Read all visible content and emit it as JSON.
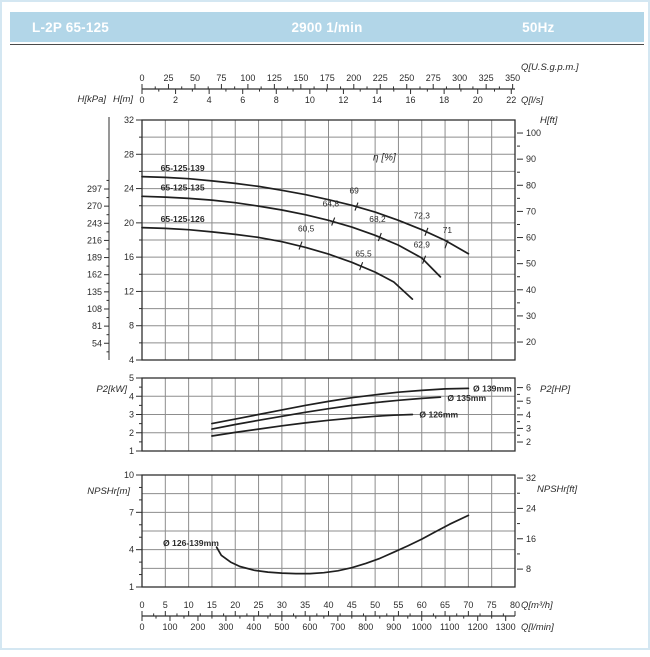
{
  "header": {
    "model": "L-2P 65-125",
    "speed": "2900 1/min",
    "frequency": "50Hz"
  },
  "style": {
    "bar_color": "#b2d6e8",
    "bar_text_color": "#ffffff",
    "curve_color": "#1f1f1f",
    "grid_color": "#8d8d8d",
    "frame_color": "#2f2f2f",
    "text_color": "#2b2b2b",
    "page_border_color": "#d4e7f2"
  },
  "chart_data": {
    "type": "line",
    "flow_scales": {
      "xlim_m3h": [
        0,
        80
      ],
      "top": [
        {
          "label": "Q[U.S.g.p.m.]",
          "m3h_per_unit": 0.22712,
          "ticks": [
            0,
            25,
            50,
            75,
            100,
            125,
            150,
            175,
            200,
            225,
            250,
            275,
            300,
            325,
            350
          ]
        },
        {
          "label": "Q[l/s]",
          "m3h_per_unit": 3.6,
          "ticks": [
            0,
            2,
            4,
            6,
            8,
            10,
            12,
            14,
            16,
            18,
            20,
            22
          ]
        }
      ],
      "bottom": [
        {
          "label": "Q[m³/h]",
          "m3h_per_unit": 1,
          "ticks": [
            0,
            5,
            10,
            15,
            20,
            25,
            30,
            35,
            40,
            45,
            50,
            55,
            60,
            65,
            70,
            75,
            80
          ]
        },
        {
          "label": "Q[l/min]",
          "m3h_per_unit": 0.06,
          "ticks": [
            0,
            100,
            200,
            300,
            400,
            500,
            600,
            700,
            800,
            900,
            1000,
            1100,
            1200,
            1300
          ]
        }
      ]
    },
    "head_chart": {
      "ylim": [
        4,
        32
      ],
      "grid_y_step": 2,
      "grid_x_step_m3h": 5,
      "y_left_primary": {
        "label": "H[m]",
        "ticks": [
          4,
          8,
          12,
          16,
          20,
          24,
          28,
          32
        ]
      },
      "y_left_secondary": {
        "label": "H[kPa]",
        "ticks": [
          54,
          81,
          108,
          135,
          162,
          189,
          216,
          243,
          270,
          297
        ]
      },
      "y_right": {
        "label": "H[ft]",
        "ticks": [
          20,
          30,
          40,
          50,
          60,
          70,
          80,
          90,
          100
        ],
        "m_per_ft": 0.3048
      },
      "efficiency_title": "η [%]",
      "efficiency_title_pos": [
        52,
        27.3
      ],
      "series": [
        {
          "name": "65-125-139",
          "label_pos": [
            4,
            26.4
          ],
          "points": [
            [
              0,
              25.4
            ],
            [
              5,
              25.3
            ],
            [
              10,
              25.15
            ],
            [
              15,
              24.9
            ],
            [
              20,
              24.6
            ],
            [
              25,
              24.25
            ],
            [
              30,
              23.8
            ],
            [
              35,
              23.3
            ],
            [
              40,
              22.7
            ],
            [
              45,
              22.05
            ],
            [
              50,
              21.25
            ],
            [
              55,
              20.3
            ],
            [
              60,
              19.2
            ],
            [
              65,
              17.95
            ],
            [
              70,
              16.4
            ]
          ]
        },
        {
          "name": "65-125-135",
          "label_pos": [
            4,
            24.15
          ],
          "points": [
            [
              0,
              23.1
            ],
            [
              5,
              23.0
            ],
            [
              10,
              22.85
            ],
            [
              15,
              22.65
            ],
            [
              20,
              22.35
            ],
            [
              25,
              21.95
            ],
            [
              30,
              21.5
            ],
            [
              35,
              20.95
            ],
            [
              40,
              20.3
            ],
            [
              45,
              19.5
            ],
            [
              50,
              18.55
            ],
            [
              55,
              17.4
            ],
            [
              60,
              15.9
            ],
            [
              64,
              13.7
            ]
          ]
        },
        {
          "name": "65-125-126",
          "label_pos": [
            4,
            20.45
          ],
          "points": [
            [
              0,
              19.45
            ],
            [
              5,
              19.35
            ],
            [
              10,
              19.2
            ],
            [
              15,
              18.95
            ],
            [
              20,
              18.65
            ],
            [
              25,
              18.3
            ],
            [
              30,
              17.8
            ],
            [
              35,
              17.15
            ],
            [
              40,
              16.35
            ],
            [
              45,
              15.4
            ],
            [
              50,
              14.25
            ],
            [
              54,
              13.1
            ],
            [
              58,
              11.1
            ]
          ]
        }
      ],
      "efficiency_labels": [
        {
          "text": "60,5",
          "label_pos": [
            35.2,
            19.0
          ],
          "tick_pos": [
            34,
            17.35
          ]
        },
        {
          "text": "64,8",
          "label_pos": [
            40.5,
            21.9
          ],
          "tick_pos": [
            41,
            20.15
          ]
        },
        {
          "text": "69",
          "label_pos": [
            45.5,
            23.4
          ],
          "tick_pos": [
            46,
            21.9
          ]
        },
        {
          "text": "65,5",
          "label_pos": [
            47.5,
            16.1
          ],
          "tick_pos": [
            47,
            14.95
          ]
        },
        {
          "text": "68,2",
          "label_pos": [
            50.5,
            20.1
          ],
          "tick_pos": [
            51,
            18.35
          ]
        },
        {
          "text": "72,3",
          "label_pos": [
            60,
            20.5
          ],
          "tick_pos": [
            61,
            18.95
          ]
        },
        {
          "text": "62,9",
          "label_pos": [
            60,
            17.1
          ],
          "tick_pos": [
            60.5,
            15.7
          ]
        },
        {
          "text": "71",
          "label_pos": [
            65.5,
            18.8
          ],
          "tick_pos": [
            65.3,
            17.5
          ]
        }
      ]
    },
    "power_chart": {
      "ylim": [
        1,
        5
      ],
      "grid_y_step": 1,
      "y_left": {
        "label": "P2[kW]",
        "ticks": [
          1,
          2,
          3,
          4,
          5
        ]
      },
      "y_right": {
        "label": "P2[HP]",
        "ticks": [
          2,
          3,
          4,
          5,
          6
        ],
        "kw_per_hp": 0.7457
      },
      "series": [
        {
          "name": "Ø 139mm",
          "label_pos": [
            71,
            4.42
          ],
          "points": [
            [
              15,
              2.5
            ],
            [
              20,
              2.75
            ],
            [
              25,
              3.0
            ],
            [
              30,
              3.25
            ],
            [
              35,
              3.5
            ],
            [
              40,
              3.72
            ],
            [
              45,
              3.92
            ],
            [
              50,
              4.08
            ],
            [
              55,
              4.22
            ],
            [
              60,
              4.32
            ],
            [
              65,
              4.4
            ],
            [
              70,
              4.43
            ]
          ]
        },
        {
          "name": "Ø 135mm",
          "label_pos": [
            65.5,
            3.9
          ],
          "points": [
            [
              15,
              2.2
            ],
            [
              20,
              2.45
            ],
            [
              25,
              2.68
            ],
            [
              30,
              2.9
            ],
            [
              35,
              3.12
            ],
            [
              40,
              3.32
            ],
            [
              45,
              3.5
            ],
            [
              50,
              3.65
            ],
            [
              55,
              3.78
            ],
            [
              60,
              3.88
            ],
            [
              64,
              3.95
            ]
          ]
        },
        {
          "name": "Ø 126mm",
          "label_pos": [
            59.5,
            3.0
          ],
          "points": [
            [
              15,
              1.82
            ],
            [
              20,
              2.02
            ],
            [
              25,
              2.2
            ],
            [
              30,
              2.38
            ],
            [
              35,
              2.54
            ],
            [
              40,
              2.68
            ],
            [
              45,
              2.8
            ],
            [
              50,
              2.9
            ],
            [
              54,
              2.96
            ],
            [
              58,
              3.0
            ]
          ]
        }
      ]
    },
    "npshr_chart": {
      "ylim": [
        1,
        10
      ],
      "grid_y_step": 1.5,
      "y_left": {
        "label": "NPSHr[m]",
        "ticks": [
          1,
          4,
          7,
          10
        ]
      },
      "y_right": {
        "label": "NPSHr[ft]",
        "ticks": [
          8,
          16,
          24,
          32
        ],
        "m_per_ft": 0.3048
      },
      "series": [
        {
          "name": "Ø 126-139mm",
          "label_pos": [
            4.5,
            4.55
          ],
          "points": [
            [
              16,
              4.2
            ],
            [
              17,
              3.55
            ],
            [
              19,
              3.0
            ],
            [
              21,
              2.65
            ],
            [
              24,
              2.35
            ],
            [
              27,
              2.2
            ],
            [
              30,
              2.12
            ],
            [
              33,
              2.08
            ],
            [
              36,
              2.08
            ],
            [
              39,
              2.15
            ],
            [
              42,
              2.3
            ],
            [
              45,
              2.55
            ],
            [
              48,
              2.9
            ],
            [
              51,
              3.3
            ],
            [
              54,
              3.8
            ],
            [
              57,
              4.3
            ],
            [
              60,
              4.85
            ],
            [
              63,
              5.45
            ],
            [
              66,
              6.05
            ],
            [
              70,
              6.75
            ]
          ]
        }
      ]
    }
  }
}
